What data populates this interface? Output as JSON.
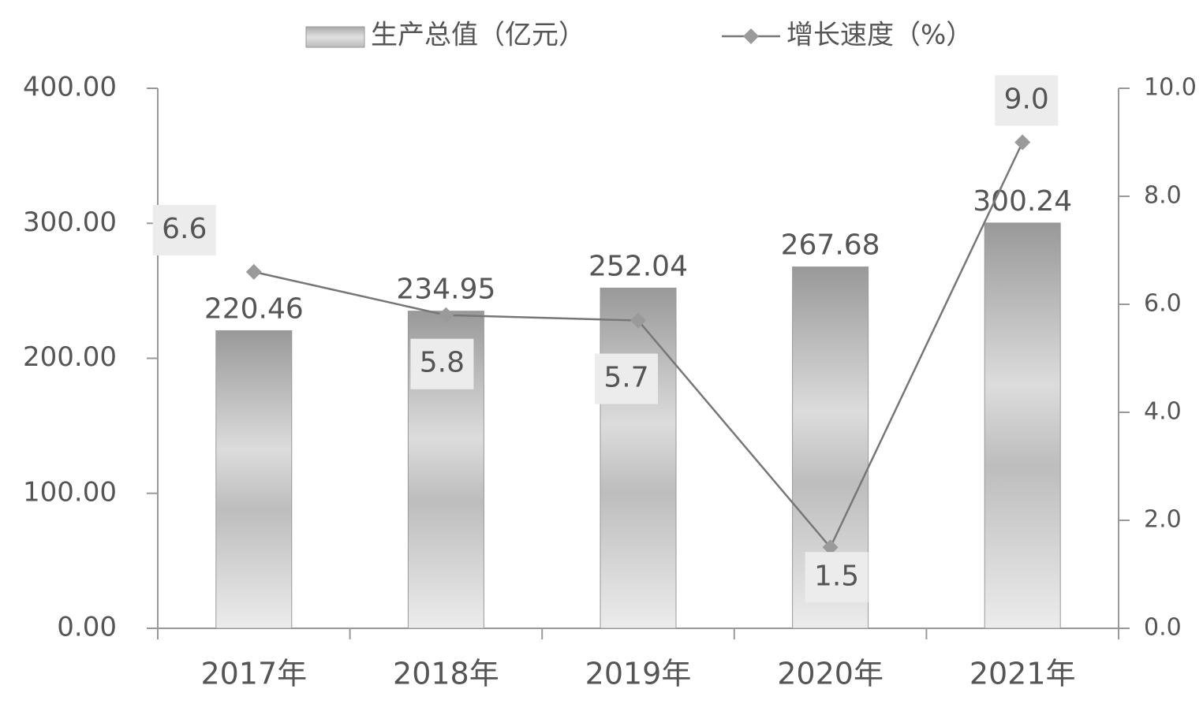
{
  "chart_data": {
    "type": "bar",
    "categories": [
      "2017年",
      "2018年",
      "2019年",
      "2020年",
      "2021年"
    ],
    "series": [
      {
        "name": "生产总值（亿元）",
        "type": "bar",
        "color": "#a8a8a8",
        "values": [
          220.46,
          234.95,
          252.04,
          267.68,
          300.24
        ]
      },
      {
        "name": "增长速度（%）",
        "type": "line",
        "axis": "y2",
        "color": "#777777",
        "marker_color": "#9a9a9a",
        "values": [
          6.6,
          5.8,
          5.7,
          1.5,
          9.0
        ],
        "value_labels": [
          "6.6",
          "5.8",
          "5.7",
          "1.5",
          "9.0"
        ]
      }
    ],
    "ylim": [
      0,
      400
    ],
    "yticks": [
      {
        "value": 0,
        "label": "0.00"
      },
      {
        "value": 100,
        "label": "100.00"
      },
      {
        "value": 200,
        "label": "200.00"
      },
      {
        "value": 300,
        "label": "300.00"
      },
      {
        "value": 400,
        "label": "400.00"
      }
    ],
    "y2lim": [
      0,
      10
    ],
    "y2ticks": [
      {
        "value": 0,
        "label": "0.0"
      },
      {
        "value": 2,
        "label": "2.0"
      },
      {
        "value": 4,
        "label": "4.0"
      },
      {
        "value": 6,
        "label": "6.0"
      },
      {
        "value": 8,
        "label": "8.0"
      },
      {
        "value": 10,
        "label": "10.0"
      }
    ],
    "legend": "top"
  }
}
